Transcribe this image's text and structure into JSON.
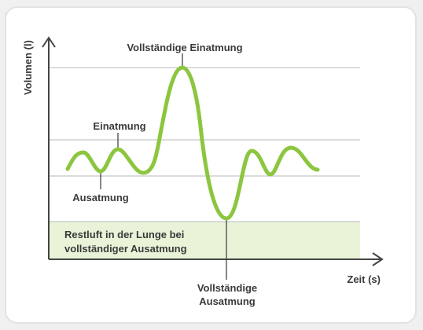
{
  "axes": {
    "y_label": "Volumen (l)",
    "x_label": "Zeit (s)"
  },
  "annotations": {
    "full_inhale": "Vollständige Einatmung",
    "inhale": "Einatmung",
    "exhale": "Ausatmung",
    "full_exhale_line1": "Vollständige",
    "full_exhale_line2": "Ausatmung"
  },
  "residual": {
    "line1": "Restluft in der Lunge bei",
    "line2": "vollständiger Ausatmung"
  },
  "colors": {
    "curve": "#8cc63f",
    "residual_fill": "#e8f3d8",
    "axis": "#444444",
    "gridline": "#c8c8c8",
    "text": "#3a3a3a"
  }
}
